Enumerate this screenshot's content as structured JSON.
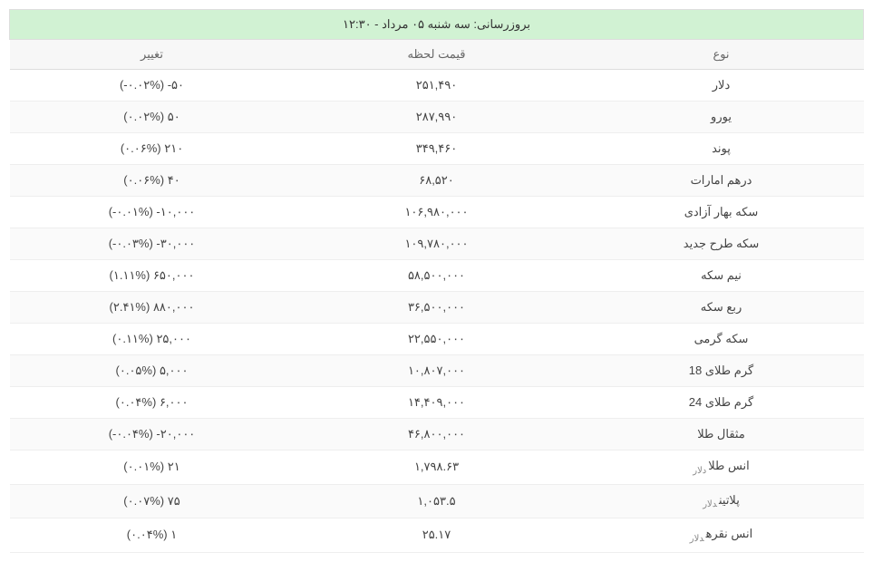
{
  "update_label": "بروزرسانی: سه شنبه ۰۵ مرداد - ۱۲:۳۰",
  "columns": {
    "name": "نوع",
    "price": "قیمت لحظه",
    "change": "تغییر"
  },
  "unit_labels": {
    "usd": "دلار"
  },
  "rows": [
    {
      "name": "دلار",
      "price": "۲۵۱,۴۹۰",
      "change": "۵۰- (۰.۰۲%-)",
      "dir": "down",
      "unit": null
    },
    {
      "name": "یورو",
      "price": "۲۸۷,۹۹۰",
      "change": "۵۰ (۰.۰۲%)",
      "dir": "up",
      "unit": null
    },
    {
      "name": "پوند",
      "price": "۳۴۹,۴۶۰",
      "change": "۲۱۰ (۰.۰۶%)",
      "dir": "up",
      "unit": null
    },
    {
      "name": "درهم امارات",
      "price": "۶۸,۵۲۰",
      "change": "۴۰ (۰.۰۶%)",
      "dir": "up",
      "unit": null
    },
    {
      "name": "سکه بهار آزادی",
      "price": "۱۰۶,۹۸۰,۰۰۰",
      "change": "۱۰,۰۰۰- (۰.۰۱%-)",
      "dir": "down",
      "unit": null
    },
    {
      "name": "سکه طرح جدید",
      "price": "۱۰۹,۷۸۰,۰۰۰",
      "change": "۳۰,۰۰۰- (۰.۰۳%-)",
      "dir": "down",
      "unit": null
    },
    {
      "name": "نیم سکه",
      "price": "۵۸,۵۰۰,۰۰۰",
      "change": "۶۵۰,۰۰۰ (۱.۱۱%)",
      "dir": "up",
      "unit": null
    },
    {
      "name": "ربع سکه",
      "price": "۳۶,۵۰۰,۰۰۰",
      "change": "۸۸۰,۰۰۰ (۲.۴۱%)",
      "dir": "up",
      "unit": null
    },
    {
      "name": "سکه گرمی",
      "price": "۲۲,۵۵۰,۰۰۰",
      "change": "۲۵,۰۰۰ (۰.۱۱%)",
      "dir": "up",
      "unit": null
    },
    {
      "name": "گرم طلای 18",
      "price": "۱۰,۸۰۷,۰۰۰",
      "change": "۵,۰۰۰ (۰.۰۵%)",
      "dir": "up",
      "unit": null
    },
    {
      "name": "گرم طلای 24",
      "price": "۱۴,۴۰۹,۰۰۰",
      "change": "۶,۰۰۰ (۰.۰۴%)",
      "dir": "up",
      "unit": null
    },
    {
      "name": "مثقال طلا",
      "price": "۴۶,۸۰۰,۰۰۰",
      "change": "۲۰,۰۰۰- (۰.۰۴%-)",
      "dir": "down",
      "unit": null
    },
    {
      "name": "انس طلا",
      "price": "۱,۷۹۸.۶۳",
      "change": "۲۱ (۰.۰۱%)",
      "dir": "up",
      "unit": "usd"
    },
    {
      "name": "پلاتین",
      "price": "۱,۰۵۳.۵",
      "change": "۷۵ (۰.۰۷%)",
      "dir": "up",
      "unit": "usd"
    },
    {
      "name": "انس نقره",
      "price": "۲۵.۱۷",
      "change": "۱ (۰.۰۴%)",
      "dir": "up",
      "unit": "usd"
    }
  ]
}
